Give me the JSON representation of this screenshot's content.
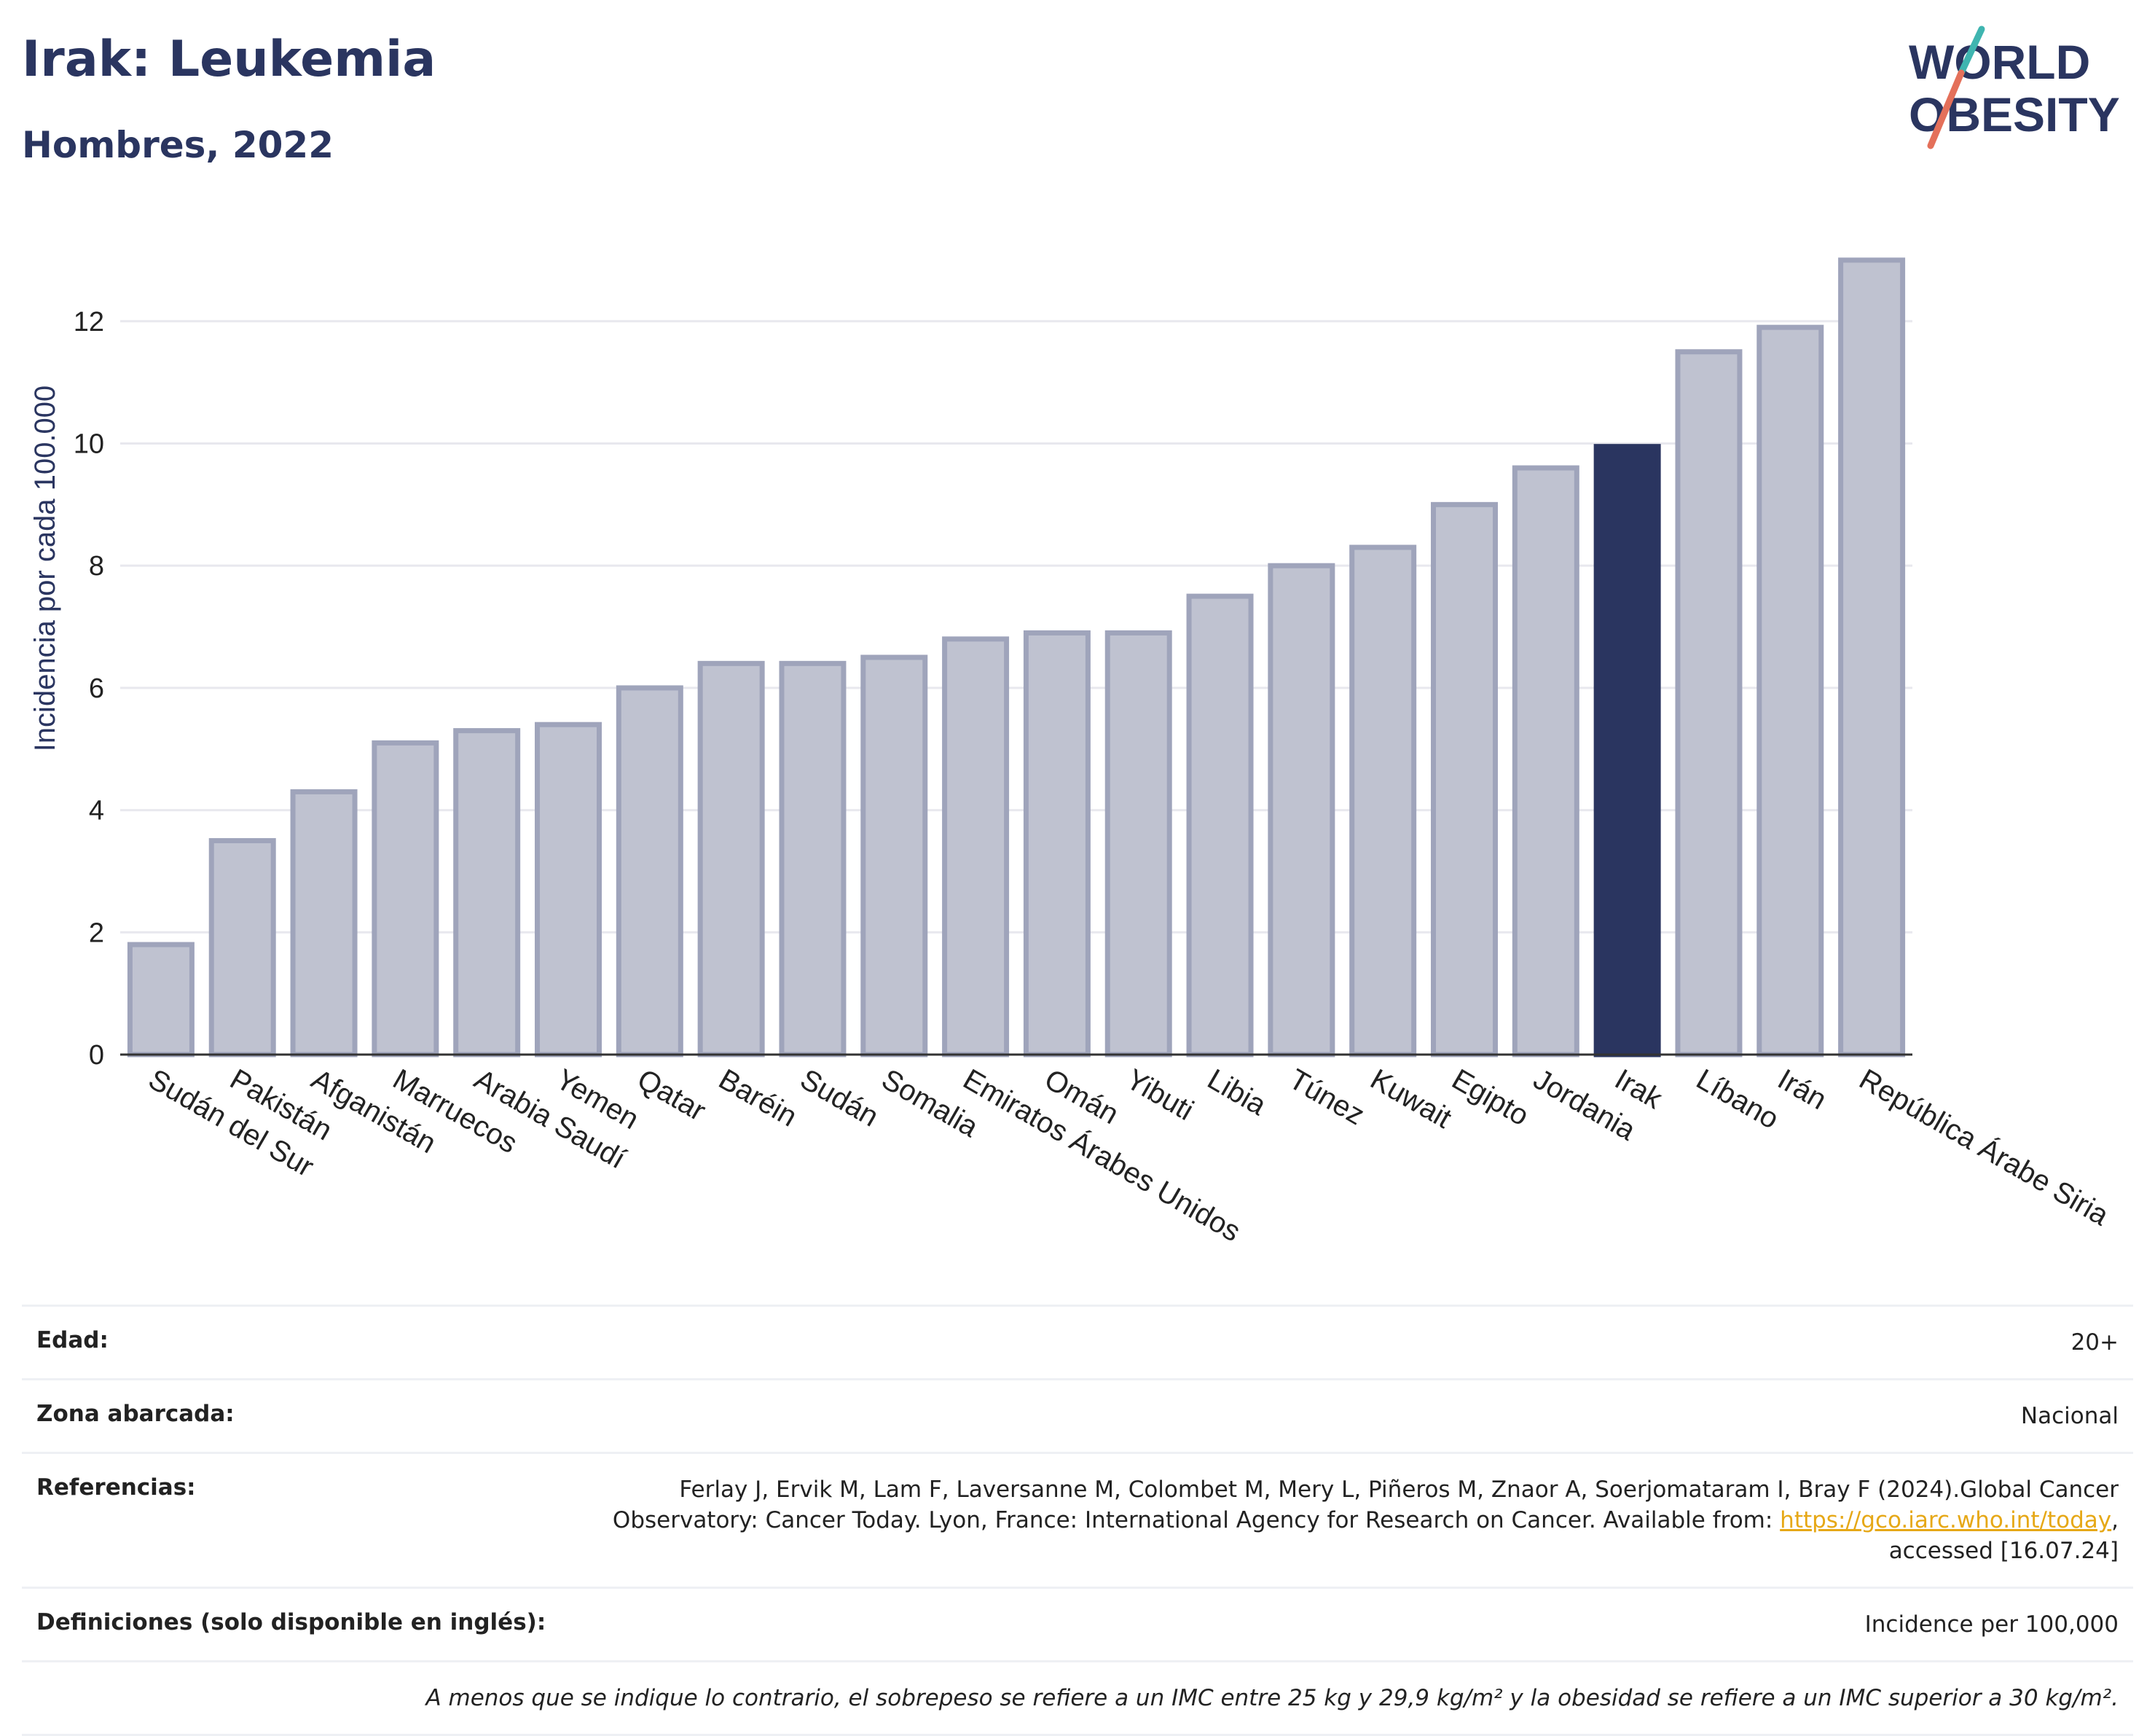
{
  "header": {
    "title": "Irak: Leukemia",
    "subtitle": "Hombres, 2022"
  },
  "logo": {
    "line1": "WORLD",
    "line2": "OBESITY"
  },
  "colors": {
    "highlight": "#2a3560",
    "bar": "#bfc2d0",
    "bar_stroke": "#9fa4bb",
    "grid": "#e8e8ee",
    "text": "#2a3560"
  },
  "chart_data": {
    "type": "bar",
    "ylabel": "Incidencia por cada 100.000",
    "xlabel": "",
    "ylim": [
      0,
      13.5
    ],
    "yticks": [
      0,
      2,
      4,
      6,
      8,
      10,
      12
    ],
    "grid": true,
    "highlight": "Irak",
    "categories": [
      "Sudán del Sur",
      "Pakistán",
      "Afganistán",
      "Marruecos",
      "Arabia Saudí",
      "Yemen",
      "Qatar",
      "Baréin",
      "Sudán",
      "Somalia",
      "Emiratos Árabes Unidos",
      "Omán",
      "Yibuti",
      "Libia",
      "Túnez",
      "Kuwait",
      "Egipto",
      "Jordania",
      "Irak",
      "Líbano",
      "Irán",
      "República Árabe Siria"
    ],
    "values": [
      1.8,
      3.5,
      4.3,
      5.1,
      5.3,
      5.4,
      6.0,
      6.4,
      6.4,
      6.5,
      6.8,
      6.9,
      6.9,
      7.5,
      8.0,
      8.3,
      9.0,
      9.6,
      9.95,
      11.5,
      11.9,
      13.0
    ]
  },
  "info": {
    "age_label": "Edad:",
    "age_value": "20+",
    "zone_label": "Zona abarcada:",
    "zone_value": "Nacional",
    "refs_label": "Referencias:",
    "refs_line1": "Ferlay J, Ervik M, Lam F, Laversanne M, Colombet M, Mery L, Piñeros M, Znaor A, Soerjomataram I, Bray F (2024).Global Cancer",
    "refs_line2": "Observatory: Cancer Today. Lyon, France: International Agency for Research on Cancer. Available from: ",
    "refs_link": "https://gco.iarc.who.int/today",
    "refs_line2_end": ",",
    "refs_line3": "accessed [16.07.24]",
    "defs_label": "Definiciones (solo disponible en inglés):",
    "defs_value": "Incidence per 100,000",
    "note": "A menos que se indique lo contrario, el sobrepeso se refiere a un IMC entre 25 kg y 29,9 kg/m² y la obesidad se refiere a un IMC superior a 30 kg/m²."
  }
}
